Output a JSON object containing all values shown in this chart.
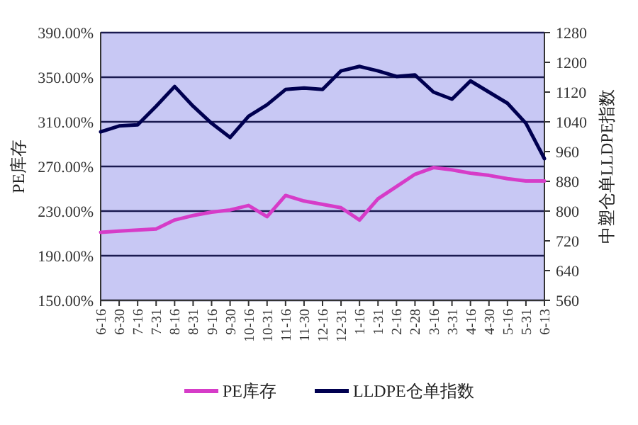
{
  "chart_data": {
    "type": "line",
    "ylabel": "PE库存",
    "y2label": "中塑仓单LLDPE指数",
    "categories": [
      "6-16",
      "6-30",
      "7-16",
      "7-31",
      "8-16",
      "8-31",
      "9-16",
      "9-30",
      "10-16",
      "10-31",
      "11-16",
      "11-30",
      "12-16",
      "12-31",
      "1-16",
      "1-31",
      "2-16",
      "2-28",
      "3-16",
      "3-31",
      "4-16",
      "4-30",
      "5-16",
      "5-31",
      "6-13"
    ],
    "series": [
      {
        "name": "PE库存",
        "color": "#d63cc8",
        "values": [
          211,
          212,
          213,
          214,
          222,
          226,
          229,
          231,
          235,
          225,
          244,
          239,
          236,
          233,
          222,
          241,
          252,
          263,
          269,
          267,
          264,
          262,
          259,
          257,
          257
        ]
      },
      {
        "name": "LLDPE仓单指数",
        "color": "#000050",
        "axis": "y2",
        "values": [
          1013,
          1029,
          1032,
          1082,
          1135,
          1082,
          1036,
          998,
          1055,
          1086,
          1127,
          1131,
          1127,
          1177,
          1189,
          1177,
          1162,
          1166,
          1120,
          1101,
          1150,
          1120,
          1090,
          1036,
          941
        ]
      }
    ],
    "ylim": [
      150,
      390
    ],
    "yticks": [
      {
        "value": 150,
        "label": "150.00%"
      },
      {
        "value": 190,
        "label": "190.00%"
      },
      {
        "value": 230,
        "label": "230.00%"
      },
      {
        "value": 270,
        "label": "270.00%"
      },
      {
        "value": 310,
        "label": "310.00%"
      },
      {
        "value": 350,
        "label": "350.00%"
      },
      {
        "value": 390,
        "label": "390.00%"
      }
    ],
    "y2lim": [
      560,
      1280
    ],
    "y2ticks": [
      560,
      640,
      720,
      800,
      880,
      960,
      1040,
      1120,
      1200,
      1280
    ],
    "grid": "y",
    "legend": "bottom"
  }
}
